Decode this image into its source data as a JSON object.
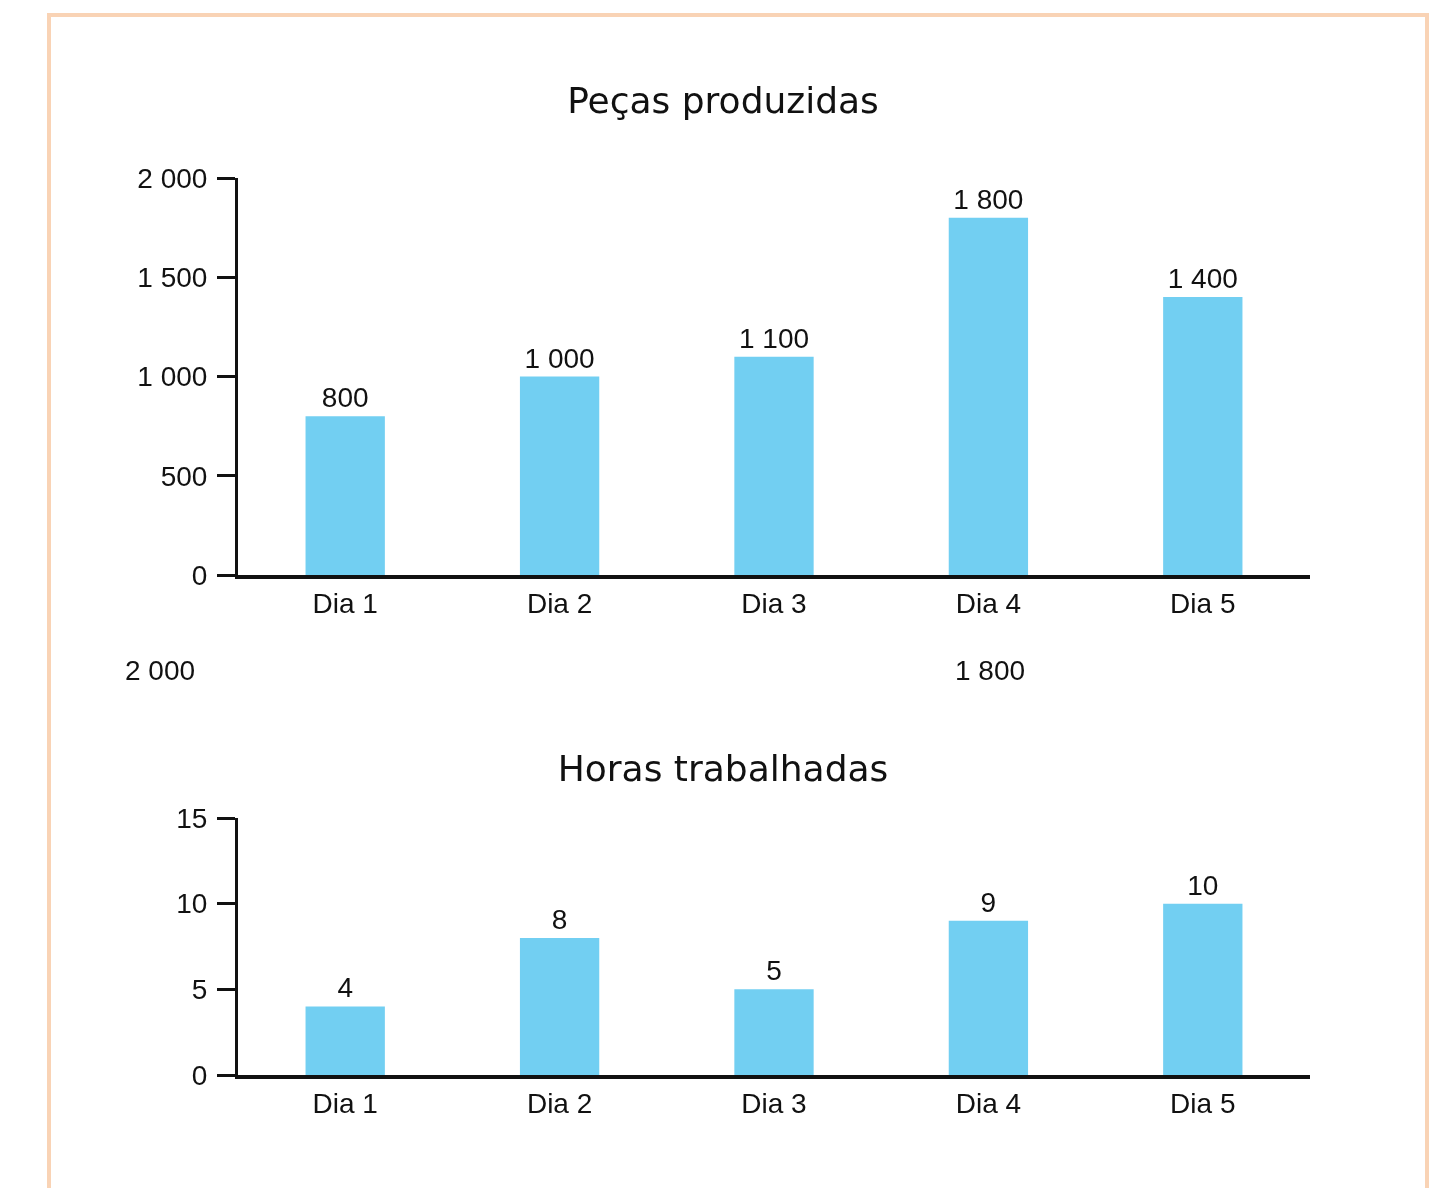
{
  "chart_data": [
    {
      "type": "bar",
      "title": "Peças produzidas",
      "categories": [
        "Dia 1",
        "Dia 2",
        "Dia 3",
        "Dia 4",
        "Dia 5"
      ],
      "values": [
        800,
        1000,
        1100,
        1800,
        1400
      ],
      "value_labels": [
        "800",
        "1 000",
        "1 100",
        "1 800",
        "1 400"
      ],
      "color": "#72cff2",
      "ylim": [
        0,
        2000
      ],
      "yticks": [
        0,
        500,
        {
          "value": 1000,
          "label": "1 000"
        },
        {
          "value": 1500,
          "label": "1 500"
        },
        {
          "value": 2000,
          "label": "2 000"
        }
      ],
      "grid": false,
      "annotations": [
        "2 000",
        "1 800"
      ]
    },
    {
      "type": "bar",
      "title": "Horas trabalhadas",
      "categories": [
        "Dia 1",
        "Dia 2",
        "Dia 3",
        "Dia 4",
        "Dia 5"
      ],
      "values": [
        4,
        8,
        5,
        9,
        10
      ],
      "value_labels": [
        "4",
        "8",
        "5",
        "9",
        "10"
      ],
      "color": "#72cff2",
      "ylim": [
        0,
        15
      ],
      "yticks": [
        0,
        5,
        10,
        15
      ],
      "grid": false
    }
  ]
}
